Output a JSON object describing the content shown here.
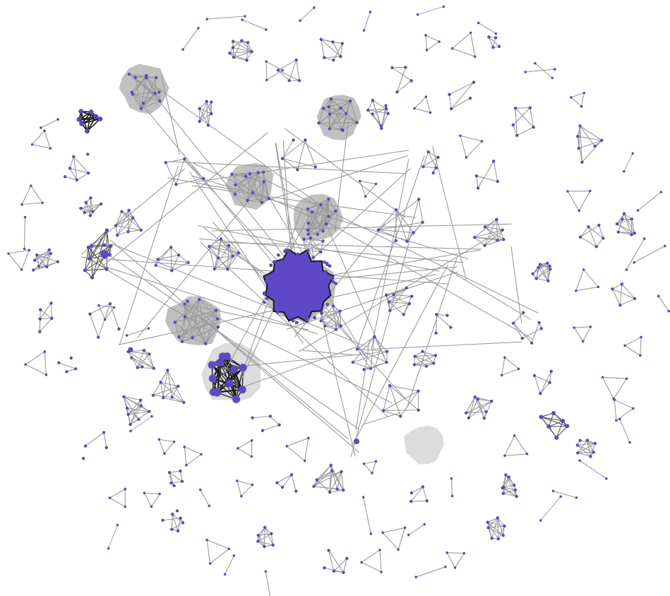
{
  "colors": {
    "background": "#ffffff",
    "edge": "#9a9a9a",
    "edge_highlight": "#1a1a1a",
    "edge_faint": "#b8a8a0",
    "node": "#5b4bb7",
    "hub_node": "#5e48c8",
    "cluster_fill": "#8c8c8c"
  },
  "diagram": {
    "type": "network-graph",
    "clusters": [
      {
        "name": "giant-core-cluster",
        "highlighted": true
      },
      {
        "name": "dense-gray-cluster",
        "count": 6
      },
      {
        "name": "black-edged-clique",
        "count": 3
      }
    ]
  }
}
